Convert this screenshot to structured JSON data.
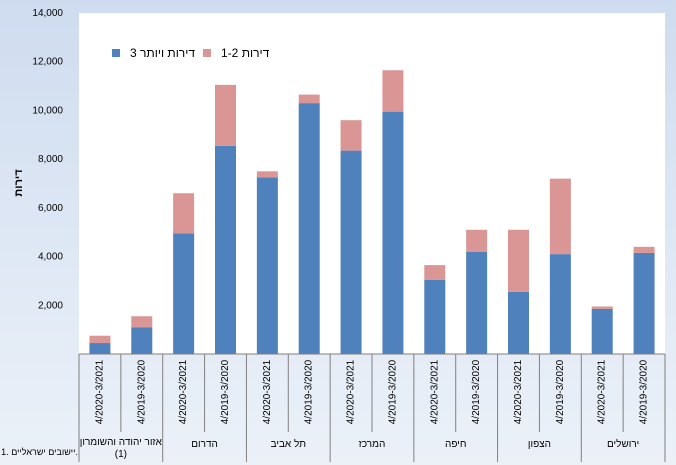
{
  "chart_data": {
    "type": "bar",
    "stacked": true,
    "title": "",
    "ylabel": "דירות",
    "xlabel": "",
    "ylim": [
      0,
      14000
    ],
    "yticks": [
      2000,
      4000,
      6000,
      8000,
      10000,
      12000,
      14000
    ],
    "ytick_labels": [
      "2,000",
      "4,000",
      "6,000",
      "8,000",
      "10,000",
      "12,000",
      "14,000"
    ],
    "grid": false,
    "legend_position": "top-left",
    "series": [
      {
        "name": "3 דירות ויותר",
        "color": "#4f81bd",
        "values": [
          4150,
          1850,
          4100,
          2550,
          4200,
          3050,
          9950,
          8350,
          10300,
          7250,
          8550,
          4950,
          1100,
          450
        ]
      },
      {
        "name": "1-2 דירות",
        "color": "#d99694",
        "values": [
          250,
          100,
          3100,
          2550,
          900,
          600,
          1700,
          1250,
          350,
          250,
          2500,
          1650,
          450,
          300
        ]
      }
    ],
    "periods": [
      "4/2019-3/2020",
      "4/2020-3/2021"
    ],
    "groups": [
      {
        "label": "ירושלים"
      },
      {
        "label": "הצפון"
      },
      {
        "label": "חיפה"
      },
      {
        "label": "המרכז"
      },
      {
        "label": "תל אביב"
      },
      {
        "label": "הדרום"
      },
      {
        "label": "אזור יהודה והשומרון (1)",
        "lines": [
          "אזור יהודה והשומרון",
          "(1)"
        ]
      }
    ]
  },
  "footnote": "1. יישובים ישראליים."
}
